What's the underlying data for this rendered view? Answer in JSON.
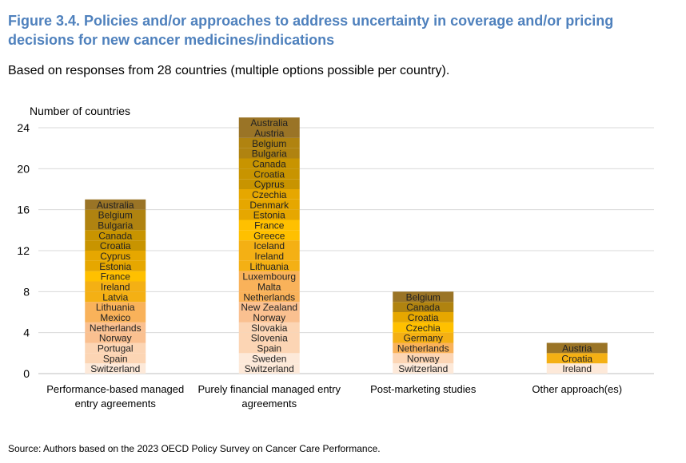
{
  "figure": {
    "title": "Figure 3.4. Policies and/or approaches to address uncertainty in coverage and/or pricing decisions for new cancer medicines/indications",
    "subtitle": "Based on responses from 28 countries (multiple options possible per country).",
    "source": "Source: Authors based on the 2023 OECD Policy Survey on Cancer Care Performance."
  },
  "colors": {
    "title": "#4f81bd",
    "gridline": "#d9d9d9",
    "axis": "#bfbfbf",
    "palette_top_to_bottom": [
      "#fde9d9",
      "#fcd5b4",
      "#fac090",
      "#f9b25a",
      "#f4b014",
      "#ffc000",
      "#e6a700",
      "#c89400",
      "#b08310",
      "#9a7426"
    ]
  },
  "chart_data": {
    "type": "stacked-bar",
    "ylabel": "Number of countries",
    "ylim": [
      0,
      24
    ],
    "yticks": [
      0,
      4,
      8,
      12,
      16,
      20,
      24
    ],
    "grid": true,
    "categories": [
      {
        "label_lines": [
          "Performance-based managed",
          "entry agreements"
        ],
        "value": 17,
        "countries": [
          "Australia",
          "Belgium",
          "Bulgaria",
          "Canada",
          "Croatia",
          "Cyprus",
          "Estonia",
          "France",
          "Ireland",
          "Latvia",
          "Lithuania",
          "Mexico",
          "Netherlands",
          "Norway",
          "Portugal",
          "Spain",
          "Switzerland"
        ]
      },
      {
        "label_lines": [
          "Purely financial managed entry",
          "agreements"
        ],
        "value": 25,
        "countries": [
          "Australia",
          "Austria",
          "Belgium",
          "Bulgaria",
          "Canada",
          "Croatia",
          "Cyprus",
          "Czechia",
          "Denmark",
          "Estonia",
          "France",
          "Greece",
          "Iceland",
          "Ireland",
          "Lithuania",
          "Luxembourg",
          "Malta",
          "Netherlands",
          "New Zealand",
          "Norway",
          "Slovakia",
          "Slovenia",
          "Spain",
          "Sweden",
          "Switzerland"
        ]
      },
      {
        "label_lines": [
          "Post-marketing studies"
        ],
        "value": 8,
        "countries": [
          "Belgium",
          "Canada",
          "Croatia",
          "Czechia",
          "Germany",
          "Netherlands",
          "Norway",
          "Switzerland"
        ]
      },
      {
        "label_lines": [
          "Other approach(es)"
        ],
        "value": 3,
        "countries": [
          "Austria",
          "Croatia",
          "Ireland"
        ]
      }
    ]
  }
}
